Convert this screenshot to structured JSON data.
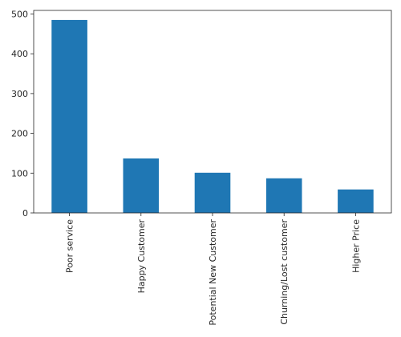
{
  "chart_data": {
    "type": "bar",
    "categories": [
      "Poor service",
      "Happy Customer",
      "Potential New Customer",
      "Churning/Lost customer",
      "Higher Price"
    ],
    "values": [
      485,
      137,
      101,
      87,
      59
    ],
    "color": "#1f77b4",
    "ylim": [
      0,
      509
    ],
    "yticks": [
      0,
      100,
      200,
      300,
      400,
      500
    ]
  }
}
